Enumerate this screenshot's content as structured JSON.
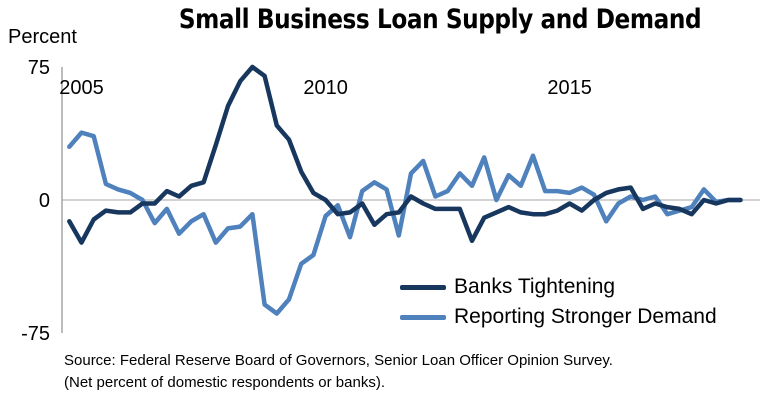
{
  "chart_data": {
    "type": "line",
    "title": "Small Business Loan Supply and Demand",
    "ylabel": "Percent",
    "ylim": [
      -75,
      75
    ],
    "yticks": [
      {
        "value": 75,
        "label": "75"
      },
      {
        "value": 0,
        "label": "0"
      },
      {
        "value": -75,
        "label": "-75"
      }
    ],
    "xlim": [
      2004.6,
      2018.9
    ],
    "xticks": [
      {
        "value": 2005.0,
        "label": "2005"
      },
      {
        "value": 2010.0,
        "label": "2010"
      },
      {
        "value": 2015.0,
        "label": "2015"
      }
    ],
    "grid": false,
    "legend_position": "bottom-right",
    "series": [
      {
        "name": "Banks Tightening",
        "color": "#17375e",
        "x": [
          2004.75,
          2005.0,
          2005.25,
          2005.5,
          2005.75,
          2006.0,
          2006.25,
          2006.5,
          2006.75,
          2007.0,
          2007.25,
          2007.5,
          2007.75,
          2008.0,
          2008.25,
          2008.5,
          2008.75,
          2009.0,
          2009.25,
          2009.5,
          2009.75,
          2010.0,
          2010.25,
          2010.5,
          2010.75,
          2011.0,
          2011.25,
          2011.5,
          2011.75,
          2012.0,
          2012.25,
          2012.5,
          2012.75,
          2013.0,
          2013.25,
          2013.5,
          2013.75,
          2014.0,
          2014.25,
          2014.5,
          2014.75,
          2015.0,
          2015.25,
          2015.5,
          2015.75,
          2016.0,
          2016.25,
          2016.5,
          2016.75,
          2017.0,
          2017.25,
          2017.5,
          2017.75,
          2018.0,
          2018.25,
          2018.5
        ],
        "values": [
          -12,
          -24,
          -11,
          -6,
          -7,
          -7,
          -2,
          -2,
          5,
          2,
          8,
          10,
          31,
          53,
          67,
          75,
          70,
          42,
          34,
          16,
          4,
          0,
          -8,
          -7,
          -2,
          -14,
          -8,
          -7,
          2,
          -2,
          -5,
          -5,
          -5,
          -23,
          -10,
          -7,
          -4,
          -7,
          -8,
          -8,
          -6,
          -2,
          -6,
          0,
          4,
          6,
          7,
          -5,
          -2,
          -4,
          -5,
          -8,
          0,
          -2,
          0,
          0
        ]
      },
      {
        "name": "Reporting Stronger Demand",
        "color": "#4f81bd",
        "x": [
          2004.75,
          2005.0,
          2005.25,
          2005.5,
          2005.75,
          2006.0,
          2006.25,
          2006.5,
          2006.75,
          2007.0,
          2007.25,
          2007.5,
          2007.75,
          2008.0,
          2008.25,
          2008.5,
          2008.75,
          2009.0,
          2009.25,
          2009.5,
          2009.75,
          2010.0,
          2010.25,
          2010.5,
          2010.75,
          2011.0,
          2011.25,
          2011.5,
          2011.75,
          2012.0,
          2012.25,
          2012.5,
          2012.75,
          2013.0,
          2013.25,
          2013.5,
          2013.75,
          2014.0,
          2014.25,
          2014.5,
          2014.75,
          2015.0,
          2015.25,
          2015.5,
          2015.75,
          2016.0,
          2016.25,
          2016.5,
          2016.75,
          2017.0,
          2017.25,
          2017.5,
          2017.75,
          2018.0,
          2018.25,
          2018.5
        ],
        "values": [
          30,
          38,
          36,
          9,
          6,
          4,
          0,
          -13,
          -5,
          -19,
          -12,
          -8,
          -24,
          -16,
          -15,
          -8,
          -59,
          -64,
          -56,
          -36,
          -31,
          -9,
          -3,
          -21,
          5,
          10,
          6,
          -20,
          15,
          22,
          2,
          5,
          15,
          8,
          24,
          0,
          14,
          8,
          25,
          5,
          5,
          4,
          7,
          3,
          -12,
          -2,
          2,
          0,
          2,
          -8,
          -6,
          -4,
          6,
          -1,
          0,
          0
        ]
      }
    ]
  },
  "source_lines": [
    "Source: Federal Reserve Board of Governors, Senior Loan Officer Opinion Survey.",
    "(Net percent of domestic respondents or banks)."
  ]
}
